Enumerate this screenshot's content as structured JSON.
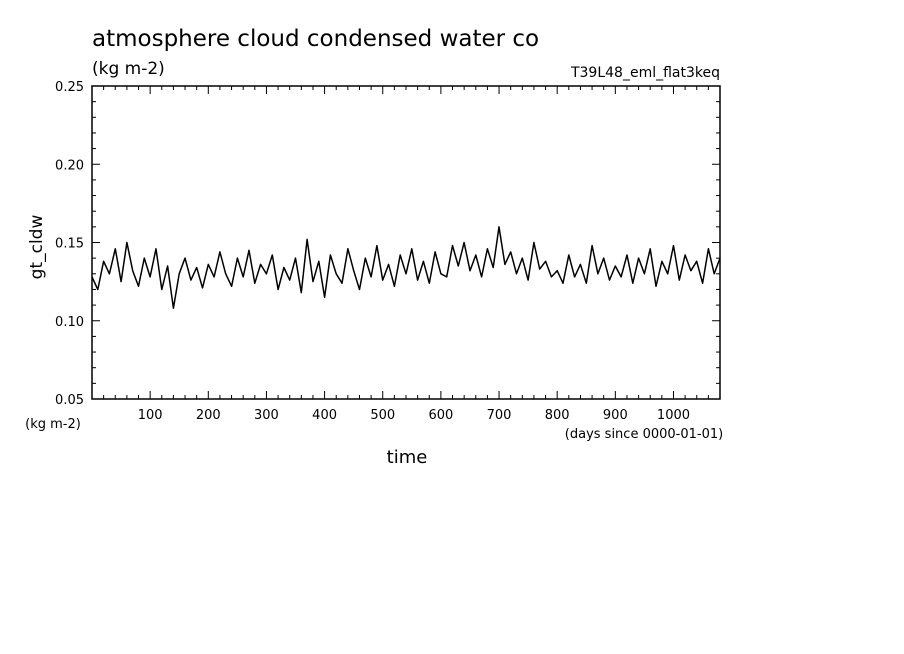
{
  "chart_data": {
    "type": "line",
    "title": "atmosphere cloud condensed water co",
    "subtitle": "(kg m-2)",
    "run_label": "T39L48_eml_flat3keq",
    "ylabel": "gt_cldw",
    "yunit": "(kg m-2)",
    "xlabel": "time",
    "xunit": "(days since 0000-01-01)",
    "xlim": [
      0,
      1080
    ],
    "ylim": [
      0.05,
      0.25
    ],
    "x_ticks": [
      100,
      200,
      300,
      400,
      500,
      600,
      700,
      800,
      900,
      1000
    ],
    "y_ticks": [
      "0.05",
      "0.10",
      "0.15",
      "0.20",
      "0.25"
    ],
    "grid": false,
    "series": [
      {
        "color": "#000000",
        "x": [
          0,
          10,
          20,
          30,
          40,
          50,
          60,
          70,
          80,
          90,
          100,
          110,
          120,
          130,
          140,
          150,
          160,
          170,
          180,
          190,
          200,
          210,
          220,
          230,
          240,
          250,
          260,
          270,
          280,
          290,
          300,
          310,
          320,
          330,
          340,
          350,
          360,
          370,
          380,
          390,
          400,
          410,
          420,
          430,
          440,
          450,
          460,
          470,
          480,
          490,
          500,
          510,
          520,
          530,
          540,
          550,
          560,
          570,
          580,
          590,
          600,
          610,
          620,
          630,
          640,
          650,
          660,
          670,
          680,
          690,
          700,
          710,
          720,
          730,
          740,
          750,
          760,
          770,
          780,
          790,
          800,
          810,
          820,
          830,
          840,
          850,
          860,
          870,
          880,
          890,
          900,
          910,
          920,
          930,
          940,
          950,
          960,
          970,
          980,
          990,
          1000,
          1010,
          1020,
          1030,
          1040,
          1050,
          1060,
          1070,
          1080
        ],
        "y": [
          0.128,
          0.12,
          0.138,
          0.13,
          0.146,
          0.125,
          0.15,
          0.132,
          0.122,
          0.14,
          0.128,
          0.146,
          0.12,
          0.135,
          0.108,
          0.13,
          0.14,
          0.126,
          0.134,
          0.121,
          0.136,
          0.128,
          0.144,
          0.13,
          0.122,
          0.14,
          0.128,
          0.145,
          0.124,
          0.136,
          0.13,
          0.142,
          0.12,
          0.134,
          0.126,
          0.14,
          0.118,
          0.152,
          0.125,
          0.138,
          0.115,
          0.142,
          0.13,
          0.124,
          0.146,
          0.132,
          0.12,
          0.14,
          0.128,
          0.148,
          0.126,
          0.136,
          0.122,
          0.142,
          0.13,
          0.146,
          0.126,
          0.138,
          0.124,
          0.144,
          0.13,
          0.128,
          0.148,
          0.135,
          0.15,
          0.132,
          0.142,
          0.128,
          0.146,
          0.134,
          0.16,
          0.136,
          0.144,
          0.13,
          0.14,
          0.126,
          0.15,
          0.133,
          0.138,
          0.128,
          0.132,
          0.124,
          0.142,
          0.128,
          0.136,
          0.124,
          0.148,
          0.13,
          0.14,
          0.126,
          0.135,
          0.128,
          0.142,
          0.124,
          0.14,
          0.13,
          0.146,
          0.122,
          0.138,
          0.13,
          0.148,
          0.126,
          0.142,
          0.132,
          0.138,
          0.124,
          0.146,
          0.13,
          0.14
        ]
      }
    ]
  }
}
